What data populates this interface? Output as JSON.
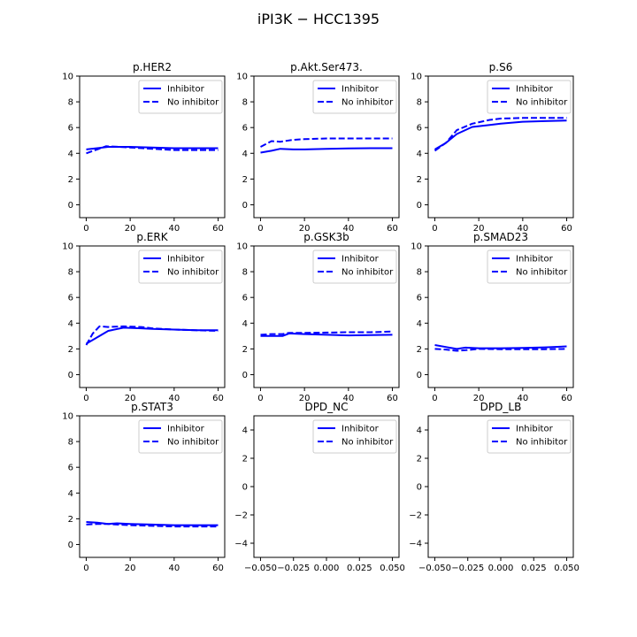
{
  "figure": {
    "title": "iPI3K − HCC1395"
  },
  "colors": {
    "line": "#0000ff",
    "axes": "#000000",
    "legend_border": "#cccccc"
  },
  "chart_data": [
    {
      "type": "line",
      "title": "p.HER2",
      "xlim": [
        -3,
        63
      ],
      "ylim": [
        -1,
        10
      ],
      "xticks": [
        "0",
        "20",
        "40",
        "60"
      ],
      "yticks": [
        "0",
        "2",
        "4",
        "6",
        "8",
        "10"
      ],
      "legend": "top-right",
      "series": [
        {
          "name": "Inhibitor",
          "style": "solid",
          "x": [
            0,
            5,
            10,
            20,
            30,
            40,
            50,
            60
          ],
          "y": [
            4.3,
            4.4,
            4.5,
            4.5,
            4.45,
            4.4,
            4.4,
            4.4
          ]
        },
        {
          "name": "No inhibitor",
          "style": "dashed",
          "x": [
            0,
            5,
            9,
            15,
            20,
            30,
            40,
            50,
            60
          ],
          "y": [
            4.0,
            4.3,
            4.55,
            4.5,
            4.45,
            4.35,
            4.25,
            4.25,
            4.25
          ]
        }
      ]
    },
    {
      "type": "line",
      "title": "p.Akt.Ser473.",
      "xlim": [
        -3,
        63
      ],
      "ylim": [
        -1,
        10
      ],
      "xticks": [
        "0",
        "20",
        "40",
        "60"
      ],
      "yticks": [
        "0",
        "2",
        "4",
        "6",
        "8",
        "10"
      ],
      "legend": "top-right",
      "series": [
        {
          "name": "Inhibitor",
          "style": "solid",
          "x": [
            0,
            5,
            9,
            15,
            20,
            30,
            40,
            50,
            60
          ],
          "y": [
            4.05,
            4.2,
            4.35,
            4.3,
            4.3,
            4.35,
            4.38,
            4.4,
            4.4
          ]
        },
        {
          "name": "No inhibitor",
          "style": "dashed",
          "x": [
            0,
            5,
            9,
            15,
            20,
            30,
            40,
            50,
            60
          ],
          "y": [
            4.5,
            4.95,
            4.9,
            5.05,
            5.1,
            5.15,
            5.15,
            5.15,
            5.15
          ]
        }
      ]
    },
    {
      "type": "line",
      "title": "p.S6",
      "xlim": [
        -3,
        63
      ],
      "ylim": [
        -1,
        10
      ],
      "xticks": [
        "0",
        "20",
        "40",
        "60"
      ],
      "yticks": [
        "0",
        "2",
        "4",
        "6",
        "8",
        "10"
      ],
      "legend": "top-right",
      "series": [
        {
          "name": "Inhibitor",
          "style": "solid",
          "x": [
            0,
            5,
            10,
            17,
            25,
            30,
            40,
            50,
            60
          ],
          "y": [
            4.3,
            4.8,
            5.5,
            6.05,
            6.2,
            6.3,
            6.45,
            6.5,
            6.55
          ]
        },
        {
          "name": "No inhibitor",
          "style": "dashed",
          "x": [
            0,
            5,
            10,
            17,
            25,
            30,
            40,
            50,
            60
          ],
          "y": [
            4.2,
            4.8,
            5.8,
            6.3,
            6.6,
            6.7,
            6.75,
            6.75,
            6.75
          ]
        }
      ]
    },
    {
      "type": "line",
      "title": "p.ERK",
      "xlim": [
        -3,
        63
      ],
      "ylim": [
        -1,
        10
      ],
      "xticks": [
        "0",
        "20",
        "40",
        "60"
      ],
      "yticks": [
        "0",
        "2",
        "4",
        "6",
        "8",
        "10"
      ],
      "legend": "top-right",
      "series": [
        {
          "name": "Inhibitor",
          "style": "solid",
          "x": [
            0,
            5,
            10,
            17,
            25,
            30,
            40,
            50,
            60
          ],
          "y": [
            2.4,
            2.9,
            3.4,
            3.65,
            3.6,
            3.55,
            3.5,
            3.45,
            3.45
          ]
        },
        {
          "name": "No inhibitor",
          "style": "dashed",
          "x": [
            0,
            3,
            6,
            10,
            17,
            25,
            30,
            40,
            50,
            60
          ],
          "y": [
            2.3,
            3.2,
            3.75,
            3.7,
            3.75,
            3.7,
            3.6,
            3.5,
            3.45,
            3.4
          ]
        }
      ]
    },
    {
      "type": "line",
      "title": "p.GSK3b",
      "xlim": [
        -3,
        63
      ],
      "ylim": [
        -1,
        10
      ],
      "xticks": [
        "0",
        "20",
        "40",
        "60"
      ],
      "yticks": [
        "0",
        "2",
        "4",
        "6",
        "8",
        "10"
      ],
      "legend": "top-right",
      "series": [
        {
          "name": "Inhibitor",
          "style": "solid",
          "x": [
            0,
            5,
            10,
            13,
            20,
            30,
            40,
            50,
            60
          ],
          "y": [
            3.0,
            3.0,
            3.0,
            3.2,
            3.15,
            3.1,
            3.05,
            3.08,
            3.1
          ]
        },
        {
          "name": "No inhibitor",
          "style": "dashed",
          "x": [
            0,
            5,
            10,
            13,
            20,
            30,
            40,
            50,
            60
          ],
          "y": [
            3.1,
            3.15,
            3.15,
            3.25,
            3.25,
            3.27,
            3.3,
            3.3,
            3.35
          ]
        }
      ]
    },
    {
      "type": "line",
      "title": "p.SMAD23",
      "xlim": [
        -3,
        63
      ],
      "ylim": [
        -1,
        10
      ],
      "xticks": [
        "0",
        "20",
        "40",
        "60"
      ],
      "yticks": [
        "0",
        "2",
        "4",
        "6",
        "8",
        "10"
      ],
      "legend": "top-right",
      "series": [
        {
          "name": "Inhibitor",
          "style": "solid",
          "x": [
            0,
            5,
            10,
            14,
            20,
            30,
            40,
            50,
            60
          ],
          "y": [
            2.3,
            2.15,
            2.0,
            2.1,
            2.05,
            2.05,
            2.08,
            2.12,
            2.2
          ]
        },
        {
          "name": "No inhibitor",
          "style": "dashed",
          "x": [
            0,
            5,
            10,
            14,
            20,
            30,
            40,
            50,
            60
          ],
          "y": [
            2.0,
            1.95,
            1.85,
            1.9,
            2.0,
            1.98,
            1.98,
            1.98,
            2.0
          ]
        }
      ]
    },
    {
      "type": "line",
      "title": "p.STAT3",
      "xlim": [
        -3,
        63
      ],
      "ylim": [
        -1,
        10
      ],
      "xticks": [
        "0",
        "20",
        "40",
        "60"
      ],
      "yticks": [
        "0",
        "2",
        "4",
        "6",
        "8",
        "10"
      ],
      "legend": "top-right",
      "series": [
        {
          "name": "Inhibitor",
          "style": "solid",
          "x": [
            0,
            5,
            10,
            14,
            20,
            30,
            40,
            50,
            60
          ],
          "y": [
            1.75,
            1.7,
            1.6,
            1.65,
            1.6,
            1.55,
            1.5,
            1.5,
            1.5
          ]
        },
        {
          "name": "No inhibitor",
          "style": "dashed",
          "x": [
            0,
            5,
            10,
            14,
            20,
            30,
            40,
            50,
            60
          ],
          "y": [
            1.55,
            1.6,
            1.6,
            1.55,
            1.5,
            1.45,
            1.4,
            1.4,
            1.4
          ]
        }
      ]
    },
    {
      "type": "line",
      "title": "DPD_NC",
      "xlim": [
        -0.055,
        0.055
      ],
      "ylim": [
        -5,
        5
      ],
      "xticks": [
        "−0.050",
        "−0.025",
        "0.000",
        "0.025",
        "0.050"
      ],
      "yticks": [
        "−4",
        "−2",
        "0",
        "2",
        "4"
      ],
      "legend": "top-right",
      "series": [
        {
          "name": "Inhibitor",
          "style": "solid",
          "x": [],
          "y": []
        },
        {
          "name": "No inhibitor",
          "style": "dashed",
          "x": [],
          "y": []
        }
      ]
    },
    {
      "type": "line",
      "title": "DPD_LB",
      "xlim": [
        -0.055,
        0.055
      ],
      "ylim": [
        -5,
        5
      ],
      "xticks": [
        "−0.050",
        "−0.025",
        "0.000",
        "0.025",
        "0.050"
      ],
      "yticks": [
        "−4",
        "−2",
        "0",
        "2",
        "4"
      ],
      "legend": "top-right",
      "series": [
        {
          "name": "Inhibitor",
          "style": "solid",
          "x": [],
          "y": []
        },
        {
          "name": "No inhibitor",
          "style": "dashed",
          "x": [],
          "y": []
        }
      ]
    }
  ]
}
